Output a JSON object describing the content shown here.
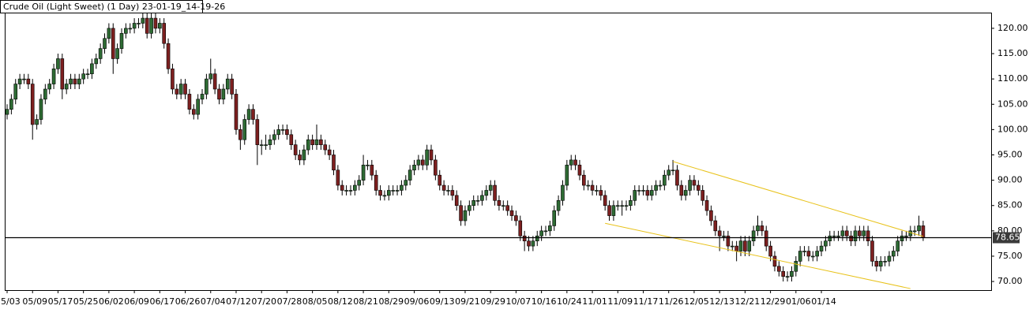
{
  "chart_data": {
    "type": "candlestick",
    "title": "Crude Oil (Light Sweet) (1 Day) 23-01-19_14-19-26",
    "up_color": "#2e6b34",
    "down_color": "#7d2020",
    "ylim": [
      68.3,
      123.1
    ],
    "yticks": [
      {
        "value": 70,
        "label": "70.00"
      },
      {
        "value": 75,
        "label": "75.00"
      },
      {
        "value": 80,
        "label": "80.00"
      },
      {
        "value": 85,
        "label": "85.00"
      },
      {
        "value": 90,
        "label": "90.00"
      },
      {
        "value": 95,
        "label": "95.00"
      },
      {
        "value": 100,
        "label": "100.00"
      },
      {
        "value": 105,
        "label": "105.00"
      },
      {
        "value": 110,
        "label": "110.00"
      },
      {
        "value": 115,
        "label": "115.00"
      },
      {
        "value": 120,
        "label": "120.00"
      }
    ],
    "last_price": 78.65,
    "trendline_color": "#e8c21a",
    "trendlines": [
      {
        "x": [
          157,
          216
        ],
        "y": [
          93.7,
          78.9
        ]
      },
      {
        "x": [
          141,
          213
        ],
        "y": [
          81.5,
          68.6
        ]
      }
    ],
    "categories": [
      "5/03",
      null,
      null,
      null,
      null,
      null,
      "05/09",
      null,
      null,
      null,
      null,
      null,
      "05/17",
      null,
      null,
      null,
      null,
      null,
      "05/25",
      null,
      null,
      null,
      null,
      null,
      "06/02",
      null,
      null,
      null,
      null,
      null,
      "06/09",
      null,
      null,
      null,
      null,
      null,
      "06/17",
      null,
      null,
      null,
      null,
      null,
      "06/26",
      null,
      null,
      null,
      null,
      null,
      "07/04",
      null,
      null,
      null,
      null,
      null,
      "07/12",
      null,
      null,
      null,
      null,
      null,
      "07/20",
      null,
      null,
      null,
      null,
      null,
      "07/28",
      null,
      null,
      null,
      null,
      null,
      "08/05",
      null,
      null,
      null,
      null,
      null,
      "08/12",
      null,
      null,
      null,
      null,
      null,
      "08/21",
      null,
      null,
      null,
      null,
      null,
      "08/29",
      null,
      null,
      null,
      null,
      null,
      "09/06",
      null,
      null,
      null,
      null,
      null,
      "09/13",
      null,
      null,
      null,
      null,
      null,
      "09/21",
      null,
      null,
      null,
      null,
      null,
      "09/29",
      null,
      null,
      null,
      null,
      null,
      "10/07",
      null,
      null,
      null,
      null,
      null,
      "10/16",
      null,
      null,
      null,
      null,
      null,
      "10/24",
      null,
      null,
      null,
      null,
      null,
      "11/01",
      null,
      null,
      null,
      null,
      null,
      "11/09",
      null,
      null,
      null,
      null,
      null,
      "11/17",
      null,
      null,
      null,
      null,
      null,
      "11/26",
      null,
      null,
      null,
      null,
      null,
      "12/05",
      null,
      null,
      null,
      null,
      null,
      "12/13",
      null,
      null,
      null,
      null,
      null,
      "12/21",
      null,
      null,
      null,
      null,
      null,
      "12/29",
      null,
      null,
      null,
      null,
      null,
      "01/06",
      null,
      null,
      null,
      null,
      null,
      "01/14",
      null,
      null,
      null,
      null,
      null,
      null,
      null,
      null,
      null,
      null,
      null,
      null,
      null,
      null,
      null,
      null,
      null,
      null,
      null,
      null,
      null,
      null,
      null,
      null
    ],
    "ohlc": [
      [
        103,
        105,
        102,
        104
      ],
      [
        104,
        107,
        103,
        106
      ],
      [
        106,
        110,
        105,
        109
      ],
      [
        109,
        111,
        108,
        110
      ],
      [
        110,
        111,
        109,
        110
      ],
      [
        110,
        111,
        108,
        109
      ],
      [
        109,
        110,
        98,
        101
      ],
      [
        101,
        103,
        100,
        102
      ],
      [
        102,
        107,
        101,
        106
      ],
      [
        106,
        109,
        105,
        108
      ],
      [
        108,
        110,
        107,
        109
      ],
      [
        109,
        113,
        108,
        112
      ],
      [
        112,
        115,
        111,
        114
      ],
      [
        114,
        115,
        106,
        108
      ],
      [
        108,
        110,
        107,
        109
      ],
      [
        109,
        111,
        108,
        110
      ],
      [
        110,
        111,
        108,
        109
      ],
      [
        109,
        111,
        108,
        110
      ],
      [
        110,
        112,
        109,
        111
      ],
      [
        111,
        112,
        110,
        111
      ],
      [
        111,
        114,
        110,
        113
      ],
      [
        113,
        115,
        112,
        114
      ],
      [
        114,
        117,
        113,
        116
      ],
      [
        116,
        119,
        115,
        118
      ],
      [
        118,
        121,
        117,
        120
      ],
      [
        120,
        121,
        111,
        114
      ],
      [
        114,
        117,
        113,
        116
      ],
      [
        116,
        120,
        115,
        119
      ],
      [
        119,
        121,
        118,
        120
      ],
      [
        120,
        121,
        119,
        120
      ],
      [
        120,
        122,
        119,
        121
      ],
      [
        121,
        122,
        120,
        121
      ],
      [
        121,
        123,
        120,
        122
      ],
      [
        122,
        123,
        118,
        119
      ],
      [
        119,
        123,
        118,
        122
      ],
      [
        122,
        123,
        119,
        120
      ],
      [
        120,
        122,
        119,
        121
      ],
      [
        121,
        122,
        116,
        117
      ],
      [
        117,
        118,
        111,
        112
      ],
      [
        112,
        113,
        107,
        108
      ],
      [
        108,
        109,
        106,
        107
      ],
      [
        107,
        110,
        106,
        109
      ],
      [
        109,
        110,
        106,
        107
      ],
      [
        107,
        108,
        103,
        104
      ],
      [
        104,
        105,
        102,
        103
      ],
      [
        103,
        107,
        102,
        106
      ],
      [
        106,
        108,
        105,
        107
      ],
      [
        107,
        111,
        106,
        110
      ],
      [
        110,
        114,
        109,
        111
      ],
      [
        111,
        112,
        107,
        108
      ],
      [
        108,
        109,
        105,
        106
      ],
      [
        106,
        109,
        105,
        108
      ],
      [
        108,
        111,
        107,
        110
      ],
      [
        110,
        111,
        106,
        107
      ],
      [
        107,
        108,
        99,
        100
      ],
      [
        100,
        101,
        96,
        98
      ],
      [
        98,
        103,
        97,
        102
      ],
      [
        102,
        105,
        101,
        104
      ],
      [
        104,
        105,
        101,
        102
      ],
      [
        102,
        103,
        93,
        97
      ],
      [
        97,
        98,
        95,
        97
      ],
      [
        97,
        99,
        96,
        97
      ],
      [
        97,
        99,
        96,
        98
      ],
      [
        98,
        100,
        97,
        99
      ],
      [
        99,
        101,
        98,
        100
      ],
      [
        100,
        101,
        99,
        100
      ],
      [
        100,
        101,
        98,
        99
      ],
      [
        99,
        100,
        96,
        97
      ],
      [
        97,
        98,
        94,
        95
      ],
      [
        95,
        96,
        93,
        94
      ],
      [
        94,
        97,
        93,
        96
      ],
      [
        96,
        99,
        95,
        98
      ],
      [
        98,
        99,
        96,
        97
      ],
      [
        97,
        101,
        96,
        98
      ],
      [
        98,
        99,
        96,
        97
      ],
      [
        97,
        98,
        95,
        96
      ],
      [
        96,
        97,
        94,
        95
      ],
      [
        95,
        96,
        91,
        92
      ],
      [
        92,
        93,
        88,
        89
      ],
      [
        89,
        90,
        87,
        88
      ],
      [
        88,
        89,
        87,
        88
      ],
      [
        88,
        89,
        87,
        88
      ],
      [
        88,
        90,
        87,
        89
      ],
      [
        89,
        91,
        88,
        90
      ],
      [
        90,
        95,
        89,
        93
      ],
      [
        93,
        94,
        92,
        93
      ],
      [
        93,
        94,
        90,
        91
      ],
      [
        91,
        92,
        87,
        88
      ],
      [
        88,
        89,
        86,
        87
      ],
      [
        87,
        88,
        86,
        87
      ],
      [
        87,
        89,
        86,
        88
      ],
      [
        88,
        89,
        87,
        88
      ],
      [
        88,
        89,
        87,
        88
      ],
      [
        88,
        90,
        87,
        89
      ],
      [
        89,
        91,
        88,
        90
      ],
      [
        90,
        93,
        89,
        92
      ],
      [
        92,
        94,
        91,
        93
      ],
      [
        93,
        95,
        92,
        94
      ],
      [
        94,
        95,
        92,
        93
      ],
      [
        93,
        97,
        92,
        96
      ],
      [
        96,
        97,
        93,
        94
      ],
      [
        94,
        95,
        90,
        91
      ],
      [
        91,
        92,
        88,
        89
      ],
      [
        89,
        90,
        87,
        88
      ],
      [
        88,
        89,
        87,
        88
      ],
      [
        88,
        89,
        86,
        87
      ],
      [
        87,
        88,
        84,
        85
      ],
      [
        85,
        86,
        81,
        82
      ],
      [
        82,
        85,
        81,
        84
      ],
      [
        84,
        86,
        83,
        85
      ],
      [
        85,
        87,
        84,
        86
      ],
      [
        86,
        87,
        85,
        86
      ],
      [
        86,
        88,
        85,
        87
      ],
      [
        87,
        89,
        86,
        88
      ],
      [
        88,
        90,
        87,
        89
      ],
      [
        89,
        90,
        85,
        86
      ],
      [
        86,
        87,
        84,
        85
      ],
      [
        85,
        86,
        84,
        85
      ],
      [
        85,
        86,
        83,
        84
      ],
      [
        84,
        85,
        82,
        83
      ],
      [
        83,
        84,
        81,
        82
      ],
      [
        82,
        83,
        78,
        79
      ],
      [
        79,
        80,
        76,
        78
      ],
      [
        78,
        79,
        76,
        77
      ],
      [
        77,
        79,
        76,
        78
      ],
      [
        78,
        80,
        77,
        79
      ],
      [
        79,
        81,
        78,
        80
      ],
      [
        80,
        81,
        79,
        80
      ],
      [
        80,
        82,
        79,
        81
      ],
      [
        81,
        85,
        80,
        84
      ],
      [
        84,
        87,
        83,
        86
      ],
      [
        86,
        90,
        85,
        89
      ],
      [
        89,
        94,
        88,
        93
      ],
      [
        93,
        95,
        92,
        94
      ],
      [
        94,
        95,
        92,
        93
      ],
      [
        93,
        94,
        90,
        91
      ],
      [
        91,
        92,
        88,
        89
      ],
      [
        89,
        90,
        88,
        89
      ],
      [
        89,
        90,
        87,
        88
      ],
      [
        88,
        89,
        87,
        88
      ],
      [
        88,
        89,
        86,
        87
      ],
      [
        87,
        88,
        84,
        85
      ],
      [
        85,
        86,
        82,
        83
      ],
      [
        83,
        86,
        82,
        85
      ],
      [
        85,
        86,
        84,
        85
      ],
      [
        85,
        86,
        83,
        85
      ],
      [
        85,
        86,
        84,
        85
      ],
      [
        85,
        87,
        84,
        86
      ],
      [
        86,
        89,
        85,
        88
      ],
      [
        88,
        89,
        87,
        88
      ],
      [
        88,
        89,
        87,
        88
      ],
      [
        88,
        89,
        86,
        87
      ],
      [
        87,
        89,
        86,
        88
      ],
      [
        88,
        90,
        87,
        89
      ],
      [
        89,
        90,
        88,
        89
      ],
      [
        89,
        92,
        88,
        91
      ],
      [
        91,
        93,
        90,
        92
      ],
      [
        92,
        94,
        91,
        92
      ],
      [
        92,
        93,
        88,
        89
      ],
      [
        89,
        90,
        86,
        87
      ],
      [
        87,
        89,
        86,
        88
      ],
      [
        88,
        91,
        87,
        90
      ],
      [
        90,
        91,
        88,
        89
      ],
      [
        89,
        90,
        87,
        88
      ],
      [
        88,
        89,
        85,
        86
      ],
      [
        86,
        87,
        83,
        84
      ],
      [
        84,
        85,
        81,
        82
      ],
      [
        82,
        83,
        79,
        80
      ],
      [
        80,
        81,
        76,
        79
      ],
      [
        79,
        80,
        78,
        79
      ],
      [
        79,
        80,
        76,
        77
      ],
      [
        77,
        78,
        76,
        77
      ],
      [
        77,
        78,
        74,
        76
      ],
      [
        76,
        79,
        75,
        78
      ],
      [
        78,
        79,
        75,
        76
      ],
      [
        76,
        79,
        75,
        78
      ],
      [
        78,
        81,
        77,
        80
      ],
      [
        80,
        83,
        79,
        81
      ],
      [
        81,
        82,
        79,
        80
      ],
      [
        80,
        81,
        76,
        77
      ],
      [
        77,
        78,
        74,
        75
      ],
      [
        75,
        76,
        72,
        73
      ],
      [
        73,
        74,
        71,
        72
      ],
      [
        72,
        73,
        70,
        71
      ],
      [
        71,
        72,
        70,
        71
      ],
      [
        71,
        73,
        70,
        72
      ],
      [
        72,
        75,
        71,
        74
      ],
      [
        74,
        77,
        73,
        76
      ],
      [
        76,
        77,
        75,
        76
      ],
      [
        76,
        77,
        74,
        75
      ],
      [
        75,
        76,
        74,
        75
      ],
      [
        75,
        77,
        74,
        76
      ],
      [
        76,
        78,
        75,
        77
      ],
      [
        77,
        79,
        76,
        78
      ],
      [
        78,
        80,
        77,
        79
      ],
      [
        79,
        80,
        78,
        79
      ],
      [
        79,
        80,
        78,
        79
      ],
      [
        79,
        81,
        78,
        80
      ],
      [
        80,
        81,
        78,
        79
      ],
      [
        79,
        80,
        77,
        78
      ],
      [
        78,
        81,
        77,
        80
      ],
      [
        80,
        81,
        78,
        79
      ],
      [
        79,
        81,
        78,
        80
      ],
      [
        80,
        81,
        77,
        78
      ],
      [
        78,
        79,
        73,
        74
      ],
      [
        74,
        75,
        72,
        73
      ],
      [
        73,
        75,
        72,
        74
      ],
      [
        74,
        75,
        73,
        74
      ],
      [
        74,
        76,
        73,
        75
      ],
      [
        75,
        77,
        74,
        76
      ],
      [
        76,
        79,
        75,
        78
      ],
      [
        78,
        80,
        77,
        79
      ],
      [
        79,
        80,
        78,
        79
      ],
      [
        79,
        81,
        78,
        80
      ],
      [
        80,
        81,
        79,
        80
      ],
      [
        80,
        83,
        79,
        81
      ],
      [
        81,
        82,
        78,
        78.65
      ]
    ]
  }
}
